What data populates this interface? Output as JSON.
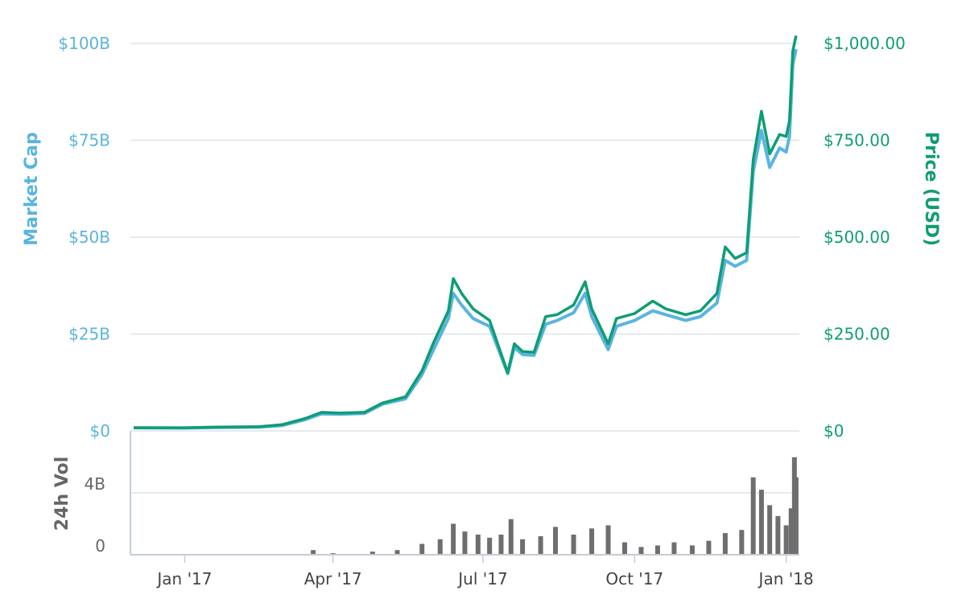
{
  "chart_data": {
    "type": "line",
    "title": "",
    "x_type": "date",
    "x_range": [
      "2016-12-01",
      "2018-01-09"
    ],
    "x_ticks": [
      {
        "date": "2017-01-01",
        "label": "Jan '17"
      },
      {
        "date": "2017-04-01",
        "label": "Apr '17"
      },
      {
        "date": "2017-07-01",
        "label": "Jul '17"
      },
      {
        "date": "2017-10-01",
        "label": "Oct '17"
      },
      {
        "date": "2018-01-01",
        "label": "Jan '18"
      }
    ],
    "y_left": {
      "label": "Market Cap",
      "range": [
        0,
        100
      ],
      "unit": "billion USD",
      "ticks": [
        {
          "value": 0,
          "label": "$0"
        },
        {
          "value": 25,
          "label": "$25B"
        },
        {
          "value": 50,
          "label": "$50B"
        },
        {
          "value": 75,
          "label": "$75B"
        },
        {
          "value": 100,
          "label": "$100B"
        }
      ]
    },
    "y_right": {
      "label": "Price (USD)",
      "range": [
        0,
        1000
      ],
      "ticks": [
        {
          "value": 0,
          "label": "$0"
        },
        {
          "value": 250,
          "label": "$250.00"
        },
        {
          "value": 500,
          "label": "$500.00"
        },
        {
          "value": 750,
          "label": "$750.00"
        },
        {
          "value": 1000,
          "label": "$1,000.00"
        }
      ]
    },
    "y_volume": {
      "label": "24h Vol",
      "unit": "billion USD",
      "range": [
        0,
        8
      ],
      "ticks": [
        {
          "value": 0,
          "label": "0"
        },
        {
          "value": 4,
          "label": "4B"
        }
      ]
    },
    "grid": true,
    "colors": {
      "market_cap": "#5ab4e0",
      "price": "#0f9d74",
      "volume": "#6e6e6e"
    },
    "series": [
      {
        "key": "market_cap",
        "axis": "left",
        "points": [
          [
            "2016-12-01",
            0.8
          ],
          [
            "2017-01-01",
            0.75
          ],
          [
            "2017-01-20",
            0.9
          ],
          [
            "2017-02-15",
            1.0
          ],
          [
            "2017-03-01",
            1.4
          ],
          [
            "2017-03-15",
            2.9
          ],
          [
            "2017-03-25",
            4.4
          ],
          [
            "2017-04-05",
            4.3
          ],
          [
            "2017-04-20",
            4.5
          ],
          [
            "2017-05-01",
            6.9
          ],
          [
            "2017-05-15",
            8.3
          ],
          [
            "2017-05-25",
            14.5
          ],
          [
            "2017-06-01",
            21.0
          ],
          [
            "2017-06-10",
            29.0
          ],
          [
            "2017-06-13",
            35.5
          ],
          [
            "2017-06-18",
            32.5
          ],
          [
            "2017-06-25",
            29.0
          ],
          [
            "2017-07-05",
            27.0
          ],
          [
            "2017-07-16",
            14.8
          ],
          [
            "2017-07-20",
            21.5
          ],
          [
            "2017-07-25",
            19.7
          ],
          [
            "2017-08-01",
            19.5
          ],
          [
            "2017-08-08",
            27.5
          ],
          [
            "2017-08-15",
            28.5
          ],
          [
            "2017-08-25",
            30.5
          ],
          [
            "2017-09-01",
            35.5
          ],
          [
            "2017-09-05",
            29.5
          ],
          [
            "2017-09-15",
            21.0
          ],
          [
            "2017-09-20",
            27.0
          ],
          [
            "2017-10-01",
            28.5
          ],
          [
            "2017-10-12",
            31.0
          ],
          [
            "2017-10-20",
            30.0
          ],
          [
            "2017-11-01",
            28.5
          ],
          [
            "2017-11-10",
            29.5
          ],
          [
            "2017-11-20",
            33.0
          ],
          [
            "2017-11-25",
            44.0
          ],
          [
            "2017-12-01",
            42.5
          ],
          [
            "2017-12-08",
            44.0
          ],
          [
            "2017-12-12",
            67.0
          ],
          [
            "2017-12-17",
            77.5
          ],
          [
            "2017-12-22",
            68.0
          ],
          [
            "2017-12-28",
            73.0
          ],
          [
            "2018-01-01",
            72.0
          ],
          [
            "2018-01-03",
            76.0
          ],
          [
            "2018-01-05",
            94.5
          ],
          [
            "2018-01-07",
            98.5
          ]
        ]
      },
      {
        "key": "price",
        "axis": "right",
        "points": [
          [
            "2016-12-01",
            8.0
          ],
          [
            "2017-01-01",
            8.0
          ],
          [
            "2017-01-20",
            10.0
          ],
          [
            "2017-02-15",
            11.0
          ],
          [
            "2017-03-01",
            16.0
          ],
          [
            "2017-03-15",
            32.0
          ],
          [
            "2017-03-25",
            48.0
          ],
          [
            "2017-04-05",
            46.0
          ],
          [
            "2017-04-20",
            48.0
          ],
          [
            "2017-05-01",
            72.0
          ],
          [
            "2017-05-15",
            88.0
          ],
          [
            "2017-05-25",
            155.0
          ],
          [
            "2017-06-01",
            228.0
          ],
          [
            "2017-06-10",
            310.0
          ],
          [
            "2017-06-13",
            393.0
          ],
          [
            "2017-06-18",
            355.0
          ],
          [
            "2017-06-25",
            315.0
          ],
          [
            "2017-07-05",
            285.0
          ],
          [
            "2017-07-16",
            150.0
          ],
          [
            "2017-07-20",
            225.0
          ],
          [
            "2017-07-25",
            205.0
          ],
          [
            "2017-08-01",
            203.0
          ],
          [
            "2017-08-08",
            295.0
          ],
          [
            "2017-08-15",
            300.0
          ],
          [
            "2017-08-25",
            325.0
          ],
          [
            "2017-09-01",
            385.0
          ],
          [
            "2017-09-05",
            315.0
          ],
          [
            "2017-09-15",
            225.0
          ],
          [
            "2017-09-20",
            290.0
          ],
          [
            "2017-10-01",
            303.0
          ],
          [
            "2017-10-12",
            335.0
          ],
          [
            "2017-10-20",
            315.0
          ],
          [
            "2017-11-01",
            300.0
          ],
          [
            "2017-11-10",
            310.0
          ],
          [
            "2017-11-20",
            355.0
          ],
          [
            "2017-11-25",
            475.0
          ],
          [
            "2017-12-01",
            445.0
          ],
          [
            "2017-12-08",
            460.0
          ],
          [
            "2017-12-12",
            700.0
          ],
          [
            "2017-12-17",
            825.0
          ],
          [
            "2017-12-22",
            715.0
          ],
          [
            "2017-12-28",
            765.0
          ],
          [
            "2018-01-01",
            760.0
          ],
          [
            "2018-01-03",
            800.0
          ],
          [
            "2018-01-05",
            980.0
          ],
          [
            "2018-01-07",
            1020.0
          ]
        ]
      },
      {
        "key": "volume",
        "axis": "volume",
        "type": "bar",
        "points": [
          [
            "2017-03-20",
            0.3
          ],
          [
            "2017-04-01",
            0.1
          ],
          [
            "2017-04-25",
            0.2
          ],
          [
            "2017-05-10",
            0.3
          ],
          [
            "2017-05-25",
            0.7
          ],
          [
            "2017-06-05",
            1.0
          ],
          [
            "2017-06-13",
            2.0
          ],
          [
            "2017-06-20",
            1.5
          ],
          [
            "2017-06-28",
            1.3
          ],
          [
            "2017-07-05",
            1.1
          ],
          [
            "2017-07-12",
            1.3
          ],
          [
            "2017-07-18",
            2.3
          ],
          [
            "2017-07-25",
            1.0
          ],
          [
            "2017-08-05",
            1.2
          ],
          [
            "2017-08-14",
            1.8
          ],
          [
            "2017-08-25",
            1.3
          ],
          [
            "2017-09-05",
            1.7
          ],
          [
            "2017-09-15",
            1.9
          ],
          [
            "2017-09-25",
            0.8
          ],
          [
            "2017-10-05",
            0.5
          ],
          [
            "2017-10-15",
            0.6
          ],
          [
            "2017-10-25",
            0.8
          ],
          [
            "2017-11-05",
            0.6
          ],
          [
            "2017-11-15",
            0.9
          ],
          [
            "2017-11-25",
            1.4
          ],
          [
            "2017-12-05",
            1.6
          ],
          [
            "2017-12-12",
            5.0
          ],
          [
            "2017-12-17",
            4.2
          ],
          [
            "2017-12-22",
            3.2
          ],
          [
            "2017-12-27",
            2.5
          ],
          [
            "2018-01-01",
            1.9
          ],
          [
            "2018-01-04",
            3.0
          ],
          [
            "2018-01-06",
            6.3
          ],
          [
            "2018-01-07",
            5.0
          ]
        ]
      }
    ]
  }
}
